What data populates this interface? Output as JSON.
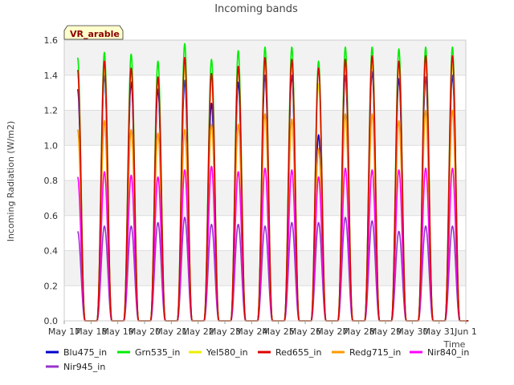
{
  "chart_data": {
    "type": "line",
    "title": "Incoming bands",
    "site_label": "VR_arable",
    "xlabel": "Time",
    "ylabel": "Incoming Radiation (W/m2)",
    "ylim": [
      0.0,
      1.6
    ],
    "yticks": [
      "0.0",
      "0.2",
      "0.4",
      "0.6",
      "0.8",
      "1.0",
      "1.2",
      "1.4",
      "1.6"
    ],
    "xlim": [
      "2023-05-17",
      "2023-06-01"
    ],
    "xticks": [
      "May 17",
      "May 18",
      "May 19",
      "May 20",
      "May 21",
      "May 22",
      "May 23",
      "May 24",
      "May 25",
      "May 26",
      "May 27",
      "May 28",
      "May 29",
      "May 30",
      "May 31",
      "Jun 1"
    ],
    "grid": true,
    "legend_position": "bottom",
    "daily_peak_dates": [
      "2023-05-17",
      "2023-05-18",
      "2023-05-19",
      "2023-05-20",
      "2023-05-21",
      "2023-05-22",
      "2023-05-23",
      "2023-05-24",
      "2023-05-25",
      "2023-05-26",
      "2023-05-27",
      "2023-05-28",
      "2023-05-29",
      "2023-05-30",
      "2023-05-31"
    ],
    "series": [
      {
        "name": "Blu475_in",
        "color": "#0000cc",
        "peaks": [
          1.32,
          1.4,
          1.36,
          1.32,
          1.37,
          1.24,
          1.36,
          1.4,
          1.4,
          1.06,
          1.4,
          1.42,
          1.38,
          1.39,
          1.4
        ]
      },
      {
        "name": "Grn535_in",
        "color": "#00ee00",
        "peaks": [
          1.5,
          1.53,
          1.52,
          1.48,
          1.58,
          1.49,
          1.54,
          1.56,
          1.56,
          1.48,
          1.56,
          1.56,
          1.55,
          1.56,
          1.56
        ]
      },
      {
        "name": "Yel580_in",
        "color": "#eeee00",
        "peaks": [
          1.4,
          1.44,
          1.42,
          1.38,
          1.45,
          1.38,
          1.44,
          1.47,
          1.46,
          1.35,
          1.46,
          1.47,
          1.45,
          1.46,
          1.46
        ]
      },
      {
        "name": "Red655_in",
        "color": "#dd0000",
        "peaks": [
          1.43,
          1.48,
          1.44,
          1.39,
          1.5,
          1.41,
          1.45,
          1.5,
          1.49,
          1.44,
          1.49,
          1.51,
          1.48,
          1.51,
          1.51
        ]
      },
      {
        "name": "Redg715_in",
        "color": "#ff9900",
        "peaks": [
          1.09,
          1.14,
          1.09,
          1.07,
          1.09,
          1.12,
          1.12,
          1.18,
          1.15,
          0.98,
          1.18,
          1.18,
          1.14,
          1.2,
          1.2
        ]
      },
      {
        "name": "Nir840_in",
        "color": "#ff00ff",
        "peaks": [
          0.82,
          0.85,
          0.83,
          0.82,
          0.86,
          0.88,
          0.85,
          0.87,
          0.86,
          0.82,
          0.87,
          0.86,
          0.86,
          0.87,
          0.87
        ]
      },
      {
        "name": "Nir945_in",
        "color": "#9933cc",
        "peaks": [
          0.51,
          0.54,
          0.54,
          0.56,
          0.59,
          0.55,
          0.55,
          0.54,
          0.56,
          0.56,
          0.59,
          0.57,
          0.51,
          0.54,
          0.54
        ]
      }
    ]
  }
}
